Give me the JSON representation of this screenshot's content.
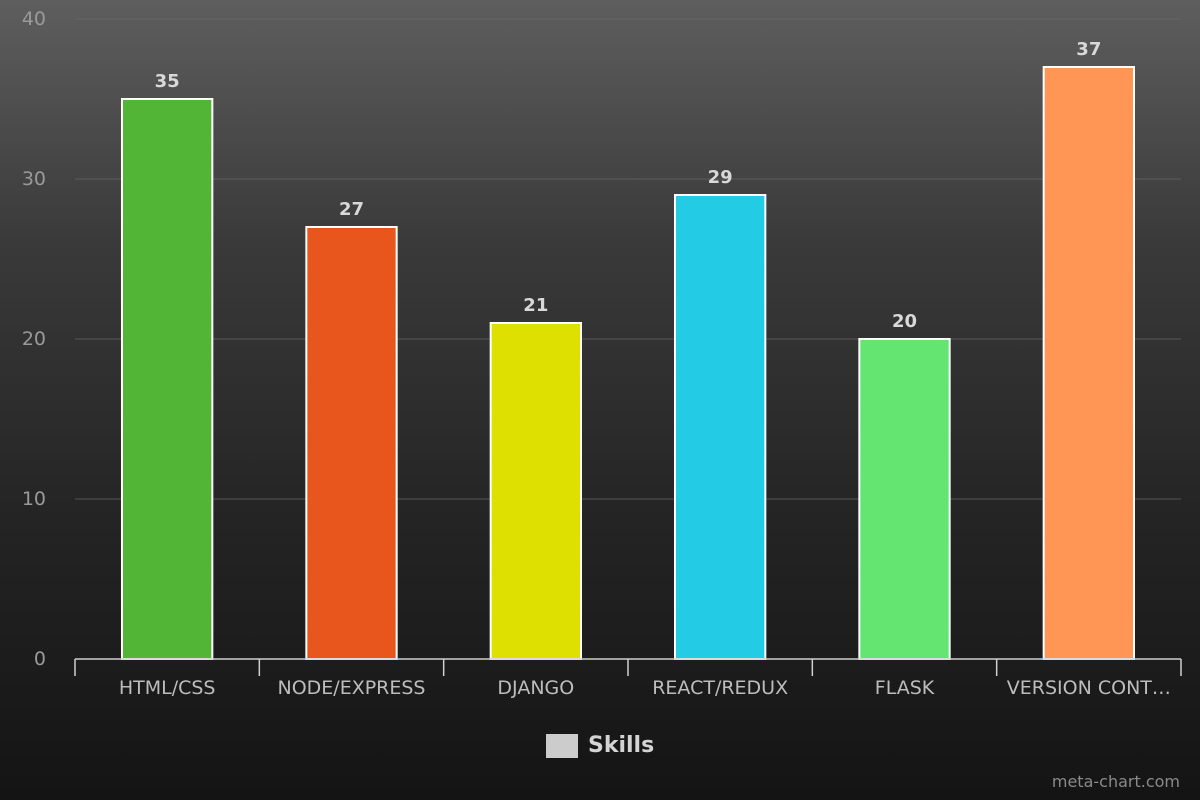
{
  "chart_data": {
    "type": "bar",
    "categories": [
      "HTML/CSS",
      "NODE/EXPRESS",
      "DJANGO",
      "REACT/REDUX",
      "FLASK",
      "VERSION CONT…"
    ],
    "values": [
      35,
      27,
      21,
      29,
      20,
      37
    ],
    "colors": [
      "#52b535",
      "#e9561d",
      "#dde000",
      "#24cbe4",
      "#64e572",
      "#ff9655"
    ],
    "yticks": [
      0,
      10,
      20,
      30,
      40
    ],
    "ylim": [
      0,
      40
    ],
    "grid": true,
    "legend": {
      "position": "bottom-center",
      "entries": [
        {
          "label": "Skills",
          "color": "#cccccc"
        }
      ]
    },
    "series": [
      {
        "name": "Skills",
        "values": [
          35,
          27,
          21,
          29,
          20,
          37
        ]
      }
    ]
  },
  "watermark": "meta-chart.com"
}
